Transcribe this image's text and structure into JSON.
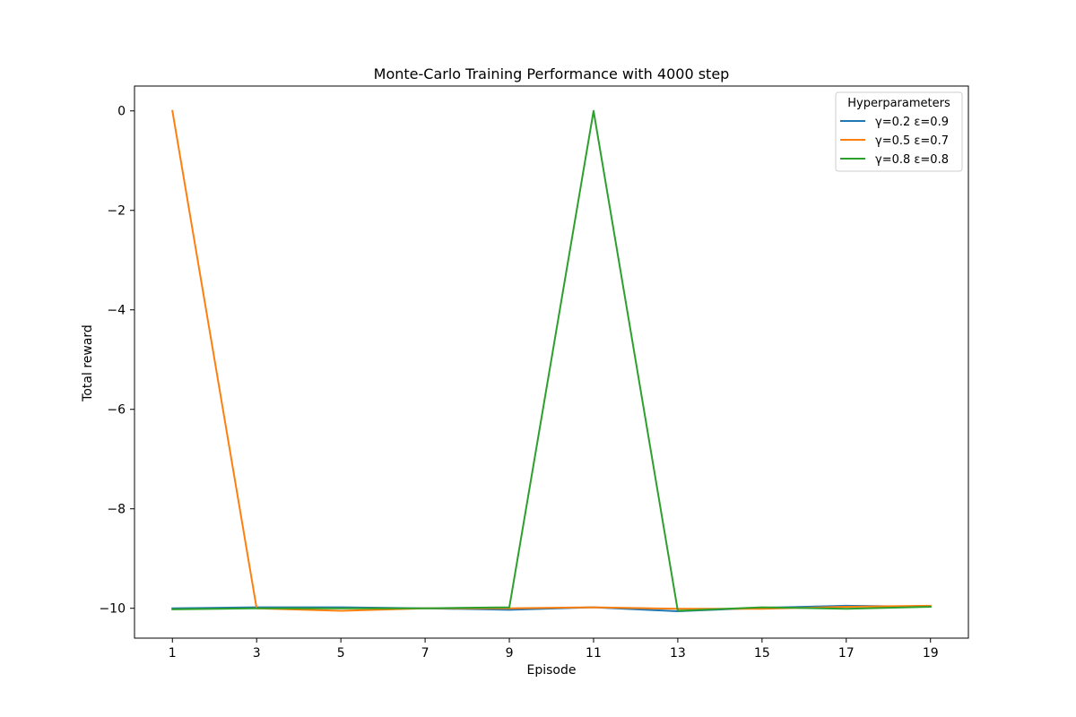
{
  "chart_data": {
    "type": "line",
    "title": "Monte-Carlo Training Performance with 4000 step",
    "xlabel": "Episode",
    "ylabel": "Total reward",
    "x": [
      1,
      3,
      5,
      7,
      9,
      11,
      13,
      15,
      17,
      19
    ],
    "xticks": [
      "1",
      "3",
      "5",
      "7",
      "9",
      "11",
      "13",
      "15",
      "17",
      "19"
    ],
    "yticks": [
      0,
      -2,
      -4,
      -6,
      -8,
      -10
    ],
    "ytick_labels": [
      "0",
      "−2",
      "−4",
      "−6",
      "−8",
      "−10"
    ],
    "xlim": [
      0.1,
      19.9
    ],
    "ylim": [
      -10.6,
      0.5
    ],
    "grid": false,
    "legend": {
      "title": "Hyperparameters",
      "position": "top-right"
    },
    "series": [
      {
        "name": "γ=0.2 ε=0.9",
        "color": "#1f77b4",
        "values": [
          -10.0,
          -9.98,
          -9.98,
          -10.0,
          -10.03,
          -9.98,
          -10.06,
          -9.99,
          -9.95,
          -9.97
        ]
      },
      {
        "name": "γ=0.5 ε=0.7",
        "color": "#ff7f0e",
        "values": [
          0.0,
          -10.0,
          -10.05,
          -10.0,
          -10.0,
          -9.98,
          -10.01,
          -10.01,
          -9.97,
          -9.95
        ]
      },
      {
        "name": "γ=0.8 ε=0.8",
        "color": "#2ca02c",
        "values": [
          -10.02,
          -10.0,
          -10.0,
          -10.0,
          -9.98,
          0.0,
          -10.05,
          -9.98,
          -10.01,
          -9.97
        ]
      }
    ]
  }
}
